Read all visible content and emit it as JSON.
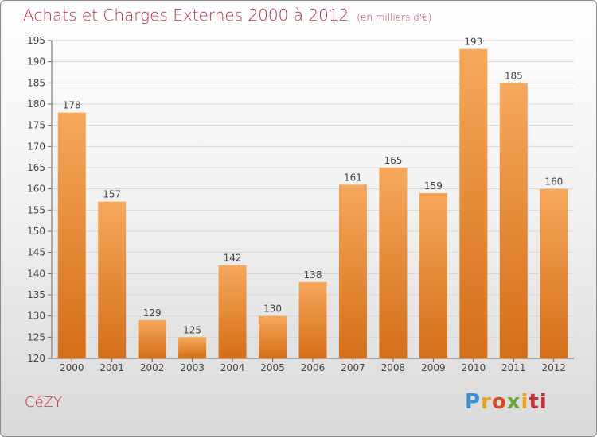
{
  "header": {
    "title": "Achats et Charges Externes 2000 à 2012",
    "unit": "(en milliers d'€)"
  },
  "footer": {
    "commune": "CéZY",
    "logo_letters": [
      "P",
      "r",
      "o",
      "x",
      "i",
      "ti"
    ]
  },
  "colors": {
    "title": "#c0303c",
    "bar_top": "#f6a85c",
    "bar_bottom": "#d46e18"
  },
  "chart_data": {
    "type": "bar",
    "title": "Achats et Charges Externes 2000 à 2012",
    "subtitle": "(en milliers d'€)",
    "categories": [
      "2000",
      "2001",
      "2002",
      "2003",
      "2004",
      "2005",
      "2006",
      "2007",
      "2008",
      "2009",
      "2010",
      "2011",
      "2012"
    ],
    "values": [
      178,
      157,
      129,
      125,
      142,
      130,
      138,
      161,
      165,
      159,
      193,
      185,
      160
    ],
    "ylim": [
      120,
      195
    ],
    "yticks": [
      120,
      125,
      130,
      135,
      140,
      145,
      150,
      155,
      160,
      165,
      170,
      175,
      180,
      185,
      190,
      195
    ],
    "grid": true,
    "xlabel": "",
    "ylabel": ""
  }
}
